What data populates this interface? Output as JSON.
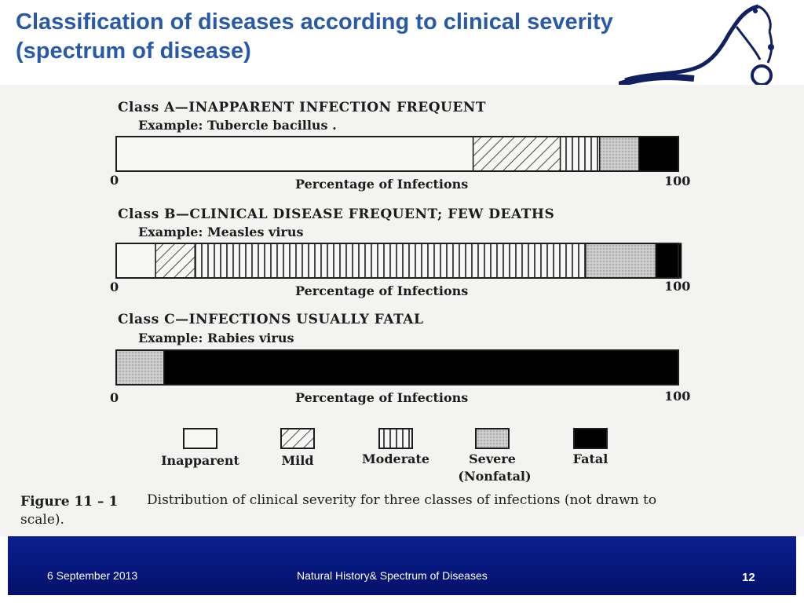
{
  "slide": {
    "title_line1": "Classification of diseases according to clinical severity",
    "title_line2": "(spectrum of disease)"
  },
  "footer": {
    "date": "6 September 2013",
    "subject": "Natural History& Spectrum of Diseases",
    "page_number": "12",
    "background": "#06167a"
  },
  "chart_data": {
    "type": "bar",
    "orientation": "horizontal-stacked-100",
    "axis_label": "Percentage of Infections",
    "xlim": [
      0,
      100
    ],
    "tick_start": "0",
    "tick_end": "100",
    "categories": [
      "Inapparent",
      "Mild",
      "Moderate",
      "Severe (Nonfatal)",
      "Fatal"
    ],
    "legend": [
      {
        "line1": "Inapparent",
        "line2": "",
        "pattern": "white"
      },
      {
        "line1": "Mild",
        "line2": "",
        "pattern": "hatch"
      },
      {
        "line1": "Moderate",
        "line2": "",
        "pattern": "vertical"
      },
      {
        "line1": "Severe",
        "line2": "(Nonfatal)",
        "pattern": "stipple"
      },
      {
        "line1": "Fatal",
        "line2": "",
        "pattern": "black"
      }
    ],
    "classes": [
      {
        "heading": "Class A—INAPPARENT INFECTION FREQUENT",
        "example": "Example: Tubercle bacillus .",
        "values": [
          63.5,
          15.5,
          7,
          7,
          7
        ]
      },
      {
        "heading": "Class B—CLINICAL DISEASE FREQUENT; FEW DEATHS",
        "example": "Example: Measles virus",
        "values": [
          7,
          7,
          69.5,
          12.5,
          4.5
        ]
      },
      {
        "heading": "Class C—INFECTIONS USUALLY FATAL",
        "example": "Example: Rabies virus",
        "values": [
          0,
          0,
          0,
          8.5,
          91.5
        ]
      }
    ],
    "caption_label": "Figure 11 – 1",
    "caption_text": "Distribution of clinical severity for three classes of infections (not drawn to",
    "caption_text2": "scale).",
    "colors": {
      "ink": "#1c1c1c",
      "stipple": "#c9c9c9",
      "paper": "#f3f3f1"
    }
  }
}
